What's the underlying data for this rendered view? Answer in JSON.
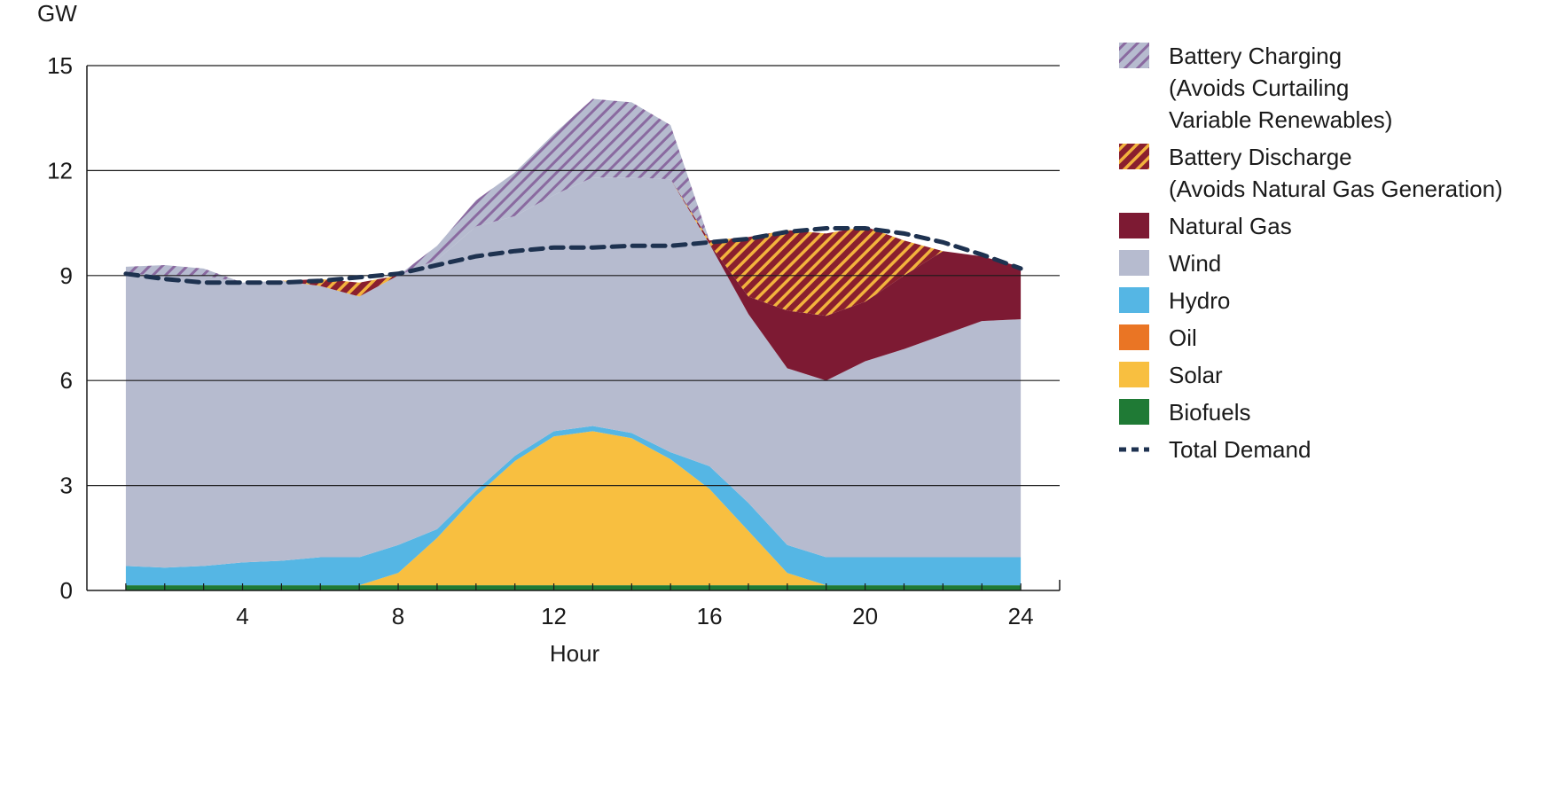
{
  "chart_data": {
    "type": "area",
    "title": "",
    "xlabel": "Hour",
    "ylabel": "GW",
    "xlim": [
      0,
      25
    ],
    "ylim": [
      0,
      15
    ],
    "x_ticks": [
      4,
      8,
      12,
      16,
      20,
      24
    ],
    "y_ticks": [
      0,
      3,
      6,
      9,
      12,
      15
    ],
    "grid": "horizontal",
    "legend_position": "right",
    "x": [
      1,
      2,
      3,
      4,
      5,
      6,
      7,
      8,
      9,
      10,
      11,
      12,
      13,
      14,
      15,
      16,
      17,
      18,
      19,
      20,
      21,
      22,
      23,
      24
    ],
    "stacked_series": [
      {
        "name": "Biofuels",
        "color": "#1f7a35",
        "values": [
          0.15,
          0.15,
          0.15,
          0.15,
          0.15,
          0.15,
          0.15,
          0.15,
          0.15,
          0.15,
          0.15,
          0.15,
          0.15,
          0.15,
          0.15,
          0.15,
          0.15,
          0.15,
          0.15,
          0.15,
          0.15,
          0.15,
          0.15,
          0.15
        ]
      },
      {
        "name": "Oil",
        "color": "#ea7524",
        "values": [
          0,
          0,
          0,
          0,
          0,
          0,
          0,
          0,
          0,
          0,
          0,
          0,
          0,
          0,
          0,
          0,
          0,
          0,
          0,
          0,
          0,
          0,
          0,
          0
        ]
      },
      {
        "name": "Solar",
        "color": "#f8bf40",
        "values": [
          0,
          0,
          0,
          0,
          0,
          0,
          0,
          0.35,
          1.35,
          2.55,
          3.55,
          4.25,
          4.4,
          4.2,
          3.6,
          2.75,
          1.55,
          0.35,
          0,
          0,
          0,
          0,
          0,
          0
        ]
      },
      {
        "name": "Hydro",
        "color": "#55b6e4",
        "values": [
          0.55,
          0.5,
          0.55,
          0.65,
          0.7,
          0.8,
          0.8,
          0.8,
          0.25,
          0.15,
          0.15,
          0.15,
          0.15,
          0.15,
          0.2,
          0.65,
          0.8,
          0.8,
          0.8,
          0.8,
          0.8,
          0.8,
          0.8,
          0.8
        ]
      },
      {
        "name": "Wind",
        "color": "#b6bbcf",
        "values": [
          8.35,
          8.35,
          8.3,
          8.0,
          8.0,
          7.75,
          7.45,
          7.7,
          7.7,
          7.55,
          6.85,
          6.75,
          7.1,
          7.3,
          7.8,
          6.35,
          5.4,
          5.05,
          5.05,
          5.6,
          5.95,
          6.35,
          6.75,
          6.8
        ]
      },
      {
        "name": "Natural Gas",
        "color": "#7d1a33",
        "values": [
          0,
          0,
          0,
          0,
          0,
          0,
          0,
          0,
          0,
          0,
          0,
          0,
          0,
          0,
          0,
          0,
          0.5,
          1.65,
          1.85,
          1.7,
          2.1,
          2.4,
          1.85,
          1.5
        ]
      },
      {
        "name": "Battery Discharge (Avoids Natural Gas Generation)",
        "color": "#f2b33d",
        "hatch_bg": "#8a1f2e",
        "values": [
          0,
          0,
          0,
          0,
          0,
          0.2,
          0.4,
          0,
          0,
          0,
          0,
          0,
          0,
          0,
          0,
          0.1,
          1.7,
          2.3,
          2.35,
          2.15,
          1.0,
          0,
          0,
          0
        ]
      },
      {
        "name": "Battery Charging (Avoids Curtailing Variable Renewables)",
        "color": "#8a6aa0",
        "hatch_bg": "#b6bbcf",
        "values": [
          0.2,
          0.3,
          0.2,
          0,
          0,
          0,
          0,
          0,
          0.4,
          0.75,
          1.25,
          1.75,
          2.25,
          2.15,
          1.55,
          0,
          0,
          0,
          0,
          0,
          0,
          0,
          0,
          0
        ]
      }
    ],
    "demand_line": {
      "name": "Total Demand",
      "color": "#1e3250",
      "values": [
        9.05,
        8.9,
        8.8,
        8.8,
        8.8,
        8.85,
        8.95,
        9.05,
        9.3,
        9.55,
        9.7,
        9.8,
        9.8,
        9.85,
        9.85,
        9.95,
        10.05,
        10.25,
        10.35,
        10.35,
        10.2,
        9.95,
        9.6,
        9.2
      ]
    }
  },
  "legend": [
    {
      "key": "battery_charging",
      "swatch": "hatch-charge",
      "lines": [
        "Battery Charging",
        "(Avoids Curtailing",
        "Variable Renewables)"
      ]
    },
    {
      "key": "battery_discharge",
      "swatch": "hatch-discharge",
      "lines": [
        "Battery Discharge",
        "(Avoids Natural Gas Generation)"
      ]
    },
    {
      "key": "natural_gas",
      "swatch": "#7d1a33",
      "lines": [
        "Natural Gas"
      ]
    },
    {
      "key": "wind",
      "swatch": "#b6bbcf",
      "lines": [
        "Wind"
      ]
    },
    {
      "key": "hydro",
      "swatch": "#55b6e4",
      "lines": [
        "Hydro"
      ]
    },
    {
      "key": "oil",
      "swatch": "#ea7524",
      "lines": [
        "Oil"
      ]
    },
    {
      "key": "solar",
      "swatch": "#f8bf40",
      "lines": [
        "Solar"
      ]
    },
    {
      "key": "biofuels",
      "swatch": "#1f7a35",
      "lines": [
        "Biofuels"
      ]
    },
    {
      "key": "total_demand",
      "swatch": "dash",
      "lines": [
        "Total Demand"
      ]
    }
  ]
}
